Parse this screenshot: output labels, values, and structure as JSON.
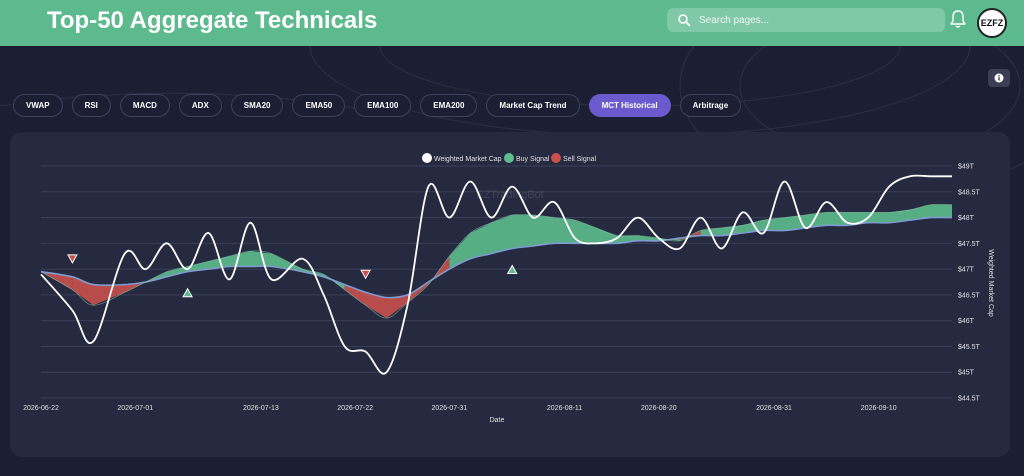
{
  "header": {
    "title": "Top-50 Aggregate Technicals",
    "search_placeholder": "Search pages...",
    "avatar_text": "EZFZ",
    "bg_color": "#5dba8e"
  },
  "tabs": [
    {
      "label": "VWAP",
      "active": false
    },
    {
      "label": "RSI",
      "active": false
    },
    {
      "label": "MACD",
      "active": false
    },
    {
      "label": "ADX",
      "active": false
    },
    {
      "label": "SMA20",
      "active": false
    },
    {
      "label": "EMA50",
      "active": false
    },
    {
      "label": "EMA100",
      "active": false
    },
    {
      "label": "EMA200",
      "active": false
    },
    {
      "label": "Market Cap Trend",
      "active": false
    },
    {
      "label": "MCT Historical",
      "active": true
    },
    {
      "label": "Arbitrage",
      "active": false
    }
  ],
  "chart_data": {
    "type": "line",
    "title": "",
    "xlabel": "Date",
    "ylabel": "Weighted Market Cap",
    "watermark": "EZTradingBot",
    "ylim": [
      44.5,
      49
    ],
    "y_ticks": [
      "$44.5T",
      "$45T",
      "$45.5T",
      "$46T",
      "$46.5T",
      "$47T",
      "$47.5T",
      "$48T",
      "$48.5T",
      "$49T"
    ],
    "x_ticks": [
      "2026-06-22",
      "2026-07-01",
      "2026-07-13",
      "2026-07-22",
      "2026-07-31",
      "2026-08-11",
      "2026-08-20",
      "2026-08-31",
      "2026-09-10"
    ],
    "legend": [
      "Weighted Market Cap",
      "Buy Signal",
      "Sell Signal"
    ],
    "legend_position": "top-center",
    "colors": {
      "line": "#ffffff",
      "buy": "#5dbb8c",
      "sell": "#c9504d",
      "slow": "#7f9bd0",
      "grid": "#3a3f57"
    },
    "x": [
      "2026-06-22",
      "2026-06-25",
      "2026-06-27",
      "2026-06-30",
      "2026-07-02",
      "2026-07-04",
      "2026-07-06",
      "2026-07-08",
      "2026-07-10",
      "2026-07-12",
      "2026-07-14",
      "2026-07-17",
      "2026-07-19",
      "2026-07-21",
      "2026-07-23",
      "2026-07-25",
      "2026-07-27",
      "2026-07-29",
      "2026-07-31",
      "2026-08-02",
      "2026-08-04",
      "2026-08-06",
      "2026-08-08",
      "2026-08-10",
      "2026-08-12",
      "2026-08-14",
      "2026-08-16",
      "2026-08-18",
      "2026-08-20",
      "2026-08-22",
      "2026-08-24",
      "2026-08-26",
      "2026-08-28",
      "2026-08-30",
      "2026-09-01",
      "2026-09-03",
      "2026-09-05",
      "2026-09-07",
      "2026-09-09",
      "2026-09-11",
      "2026-09-13",
      "2026-09-15",
      "2026-09-17"
    ],
    "series": [
      {
        "name": "Weighted Market Cap",
        "values": [
          46.9,
          46.2,
          45.6,
          47.3,
          47.0,
          47.5,
          47.0,
          47.7,
          46.8,
          47.9,
          46.8,
          47.2,
          46.5,
          45.5,
          45.4,
          45.0,
          46.3,
          48.6,
          48.0,
          48.7,
          48.0,
          48.6,
          48.0,
          48.3,
          47.6,
          47.5,
          47.6,
          48.0,
          47.6,
          47.4,
          48.0,
          47.4,
          48.1,
          47.7,
          48.7,
          47.8,
          48.3,
          47.9,
          48.0,
          48.6,
          48.8,
          48.8,
          48.8
        ]
      },
      {
        "name": "",
        "values": [
          46.95,
          46.6,
          46.3,
          46.55,
          46.75,
          46.95,
          47.05,
          47.15,
          47.25,
          47.35,
          47.3,
          47.0,
          46.9,
          46.6,
          46.3,
          46.05,
          46.35,
          46.7,
          47.25,
          47.7,
          47.9,
          48.05,
          48.05,
          48.0,
          47.95,
          47.8,
          47.65,
          47.65,
          47.6,
          47.55,
          47.75,
          47.8,
          47.85,
          47.95,
          48.0,
          48.05,
          48.1,
          48.1,
          48.1,
          48.1,
          48.15,
          48.25,
          48.25
        ]
      },
      {
        "name": "",
        "values": [
          46.95,
          46.85,
          46.7,
          46.7,
          46.75,
          46.85,
          46.95,
          47.0,
          47.05,
          47.05,
          47.05,
          46.95,
          46.85,
          46.7,
          46.55,
          46.45,
          46.5,
          46.75,
          47.0,
          47.2,
          47.3,
          47.4,
          47.45,
          47.5,
          47.5,
          47.5,
          47.5,
          47.55,
          47.55,
          47.6,
          47.65,
          47.65,
          47.7,
          47.75,
          47.75,
          47.8,
          47.85,
          47.85,
          47.9,
          47.9,
          47.95,
          48.0,
          48.0
        ]
      }
    ],
    "buy_markers": [
      "2026-07-06",
      "2026-08-06"
    ],
    "sell_markers": [
      "2026-06-25",
      "2026-07-23"
    ]
  }
}
